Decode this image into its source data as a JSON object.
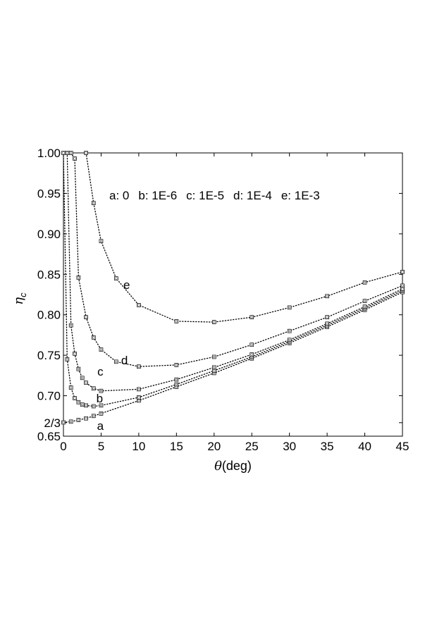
{
  "chart_data": {
    "type": "line",
    "title": "",
    "xlabel_symbol": "θ",
    "xlabel_unit": "(deg)",
    "ylabel_symbol": "η",
    "ylabel_subscript": "c",
    "xlim": [
      0,
      45
    ],
    "ylim": [
      0.65,
      1.0
    ],
    "grid": false,
    "x_ticks": [
      {
        "value": 0,
        "label": "0"
      },
      {
        "value": 5,
        "label": "5"
      },
      {
        "value": 10,
        "label": "10"
      },
      {
        "value": 15,
        "label": "15"
      },
      {
        "value": 20,
        "label": "20"
      },
      {
        "value": 25,
        "label": "25"
      },
      {
        "value": 30,
        "label": "30"
      },
      {
        "value": 35,
        "label": "35"
      },
      {
        "value": 40,
        "label": "40"
      },
      {
        "value": 45,
        "label": "45"
      }
    ],
    "y_ticks": [
      {
        "value": 0.65,
        "label": "0.65"
      },
      {
        "value": 0.6667,
        "label": "2/3"
      },
      {
        "value": 0.7,
        "label": "0.70"
      },
      {
        "value": 0.75,
        "label": "0.75"
      },
      {
        "value": 0.8,
        "label": "0.80"
      },
      {
        "value": 0.85,
        "label": "0.85"
      },
      {
        "value": 0.9,
        "label": "0.90"
      },
      {
        "value": 0.95,
        "label": "0.95"
      },
      {
        "value": 1.0,
        "label": "1.00"
      }
    ],
    "legend_text": [
      "a: 0",
      "b: 1E-6",
      "c: 1E-5",
      "d: 1E-4",
      "e: 1E-3"
    ],
    "legend_position": "top-right",
    "series": [
      {
        "label": "a",
        "x": [
          0,
          1,
          2,
          3,
          4,
          5,
          10,
          15,
          20,
          25,
          30,
          35,
          40,
          45
        ],
        "y": [
          0.667,
          0.668,
          0.67,
          0.672,
          0.675,
          0.678,
          0.694,
          0.711,
          0.728,
          0.746,
          0.765,
          0.785,
          0.806,
          0.828
        ]
      },
      {
        "label": "b",
        "x": [
          0,
          0.5,
          1,
          1.5,
          2,
          2.5,
          3,
          4,
          5,
          10,
          15,
          20,
          25,
          30,
          35,
          40,
          45
        ],
        "y": [
          1.0,
          0.745,
          0.71,
          0.697,
          0.692,
          0.689,
          0.688,
          0.687,
          0.688,
          0.698,
          0.714,
          0.731,
          0.748,
          0.767,
          0.787,
          0.808,
          0.83
        ]
      },
      {
        "label": "c",
        "x": [
          0.5,
          1,
          1.5,
          2,
          2.5,
          3,
          4,
          5,
          10,
          15,
          20,
          25,
          30,
          35,
          40,
          45
        ],
        "y": [
          1.0,
          0.787,
          0.752,
          0.733,
          0.722,
          0.716,
          0.709,
          0.706,
          0.708,
          0.72,
          0.735,
          0.751,
          0.769,
          0.789,
          0.81,
          0.832
        ]
      },
      {
        "label": "d",
        "x": [
          1,
          1.5,
          2,
          3,
          4,
          5,
          7,
          10,
          15,
          20,
          25,
          30,
          35,
          40,
          45
        ],
        "y": [
          1.0,
          0.993,
          0.846,
          0.797,
          0.772,
          0.757,
          0.742,
          0.736,
          0.738,
          0.748,
          0.763,
          0.78,
          0.797,
          0.817,
          0.836
        ]
      },
      {
        "label": "e",
        "x": [
          3,
          4,
          5,
          7,
          10,
          15,
          20,
          25,
          30,
          35,
          40,
          45
        ],
        "y": [
          1.0,
          0.938,
          0.891,
          0.845,
          0.812,
          0.792,
          0.791,
          0.797,
          0.809,
          0.823,
          0.84,
          0.853
        ]
      }
    ],
    "curve_labels": [
      {
        "text": "a",
        "x": 4.9,
        "y": 0.663
      },
      {
        "text": "b",
        "x": 4.8,
        "y": 0.697
      },
      {
        "text": "c",
        "x": 4.9,
        "y": 0.73
      },
      {
        "text": "d",
        "x": 8.1,
        "y": 0.744
      },
      {
        "text": "e",
        "x": 8.4,
        "y": 0.837
      }
    ]
  }
}
